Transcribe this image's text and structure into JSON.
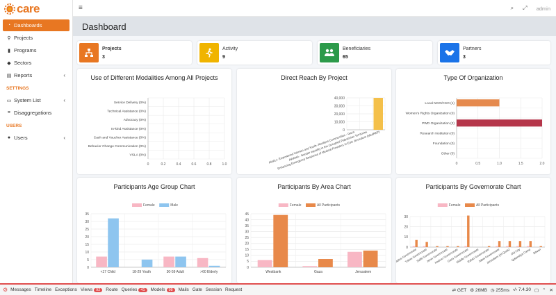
{
  "app": {
    "logo_text": "care"
  },
  "sidebar": {
    "items": [
      {
        "label": "Dashboards",
        "icon": "dashboard-icon",
        "active": true
      },
      {
        "label": "Projects",
        "icon": "sitemap-icon"
      },
      {
        "label": "Programs",
        "icon": "file-icon"
      },
      {
        "label": "Sectors",
        "icon": "sectors-icon"
      },
      {
        "label": "Reports",
        "icon": "chart-icon",
        "chevron": "‹"
      }
    ],
    "settings_header": "SETTINGS",
    "settings_items": [
      {
        "label": "System List",
        "chevron": "‹"
      },
      {
        "label": "Disaggregations"
      }
    ],
    "users_header": "USERS",
    "users_items": [
      {
        "label": "Users",
        "chevron": "‹"
      }
    ]
  },
  "topbar": {
    "hamburger": "≡",
    "search": "⌕",
    "fullscreen": "⤢",
    "user": "admin"
  },
  "page": {
    "title": "Dashboard"
  },
  "stats": [
    {
      "title": "Projects",
      "value": "3",
      "color": "#e87722",
      "icon": "sitemap-icon",
      "glyph": "⚙"
    },
    {
      "title": "Activity",
      "value": "9",
      "color": "#f0b400",
      "icon": "running-icon",
      "glyph": "🏃"
    },
    {
      "title": "Beneficiaries",
      "value": "65",
      "color": "#2c9a4a",
      "icon": "users-icon",
      "glyph": "👥"
    },
    {
      "title": "Partners",
      "value": "3",
      "color": "#1a73e8",
      "icon": "handshake-icon",
      "glyph": "🤝"
    }
  ],
  "chart_titles": {
    "modalities": "Use of Different Modalities Among All Projects",
    "direct_reach": "Direct Reach By Project",
    "org_type": "Type Of Organization",
    "age_group": "Participants Age Group Chart",
    "area": "Participants By Area Chart",
    "governorate": "Participants By Governorate Chart"
  },
  "chart_data": [
    {
      "id": "modalities",
      "type": "bar",
      "orientation": "horizontal",
      "categories": [
        "Service Delivery (0%)",
        "Technical Assistance (0%)",
        "Advocacy (0%)",
        "In-kind Assistance (0%)",
        "Cash and Voucher Assistance (0%)",
        "Behavior Change Communication (0%)",
        "VSLA (0%)"
      ],
      "values": [
        0,
        0,
        0,
        0,
        0,
        0,
        0
      ],
      "xlim": [
        0,
        1.0
      ],
      "xticks": [
        "0",
        "0.2",
        "0.4",
        "0.6",
        "0.8",
        "1.0"
      ],
      "grid": true
    },
    {
      "id": "direct_reach",
      "type": "bar",
      "categories": [
        "AMALI- Empowered Women and Youth- Resilient Communities - Gaza",
        "AWANA - Gender equality in the Occupied Palestinian Territories",
        "Enhancing Emergency Response of Medical Providers in East Jerusalem (MedREP)"
      ],
      "values": [
        0,
        0,
        40000
      ],
      "ylim": [
        0,
        40000
      ],
      "yticks": [
        "0",
        "10,000",
        "20,000",
        "30,000",
        "40,000"
      ],
      "color": "#f4c04a",
      "grid": true
    },
    {
      "id": "org_type",
      "type": "bar",
      "orientation": "horizontal",
      "categories": [
        "Local NGO/CSO (1)",
        "Women's Rights Organization (0)",
        "PWD Organization (2)",
        "Research Institution (0)",
        "Foundation (0)",
        "Other (0)"
      ],
      "values": [
        1,
        0,
        2,
        0,
        0,
        0
      ],
      "colors": [
        "#e58a4e",
        "#c0c0c0",
        "#b5364a",
        "#c0c0c0",
        "#c0c0c0",
        "#c0c0c0"
      ],
      "xlim": [
        0,
        2.0
      ],
      "xticks": [
        "0",
        "0.5",
        "1.0",
        "1.5",
        "2.0"
      ],
      "grid": true
    },
    {
      "id": "age_group",
      "type": "bar",
      "categories": [
        "<17 Child",
        "18-29 Youth",
        "30-59 Adult",
        ">60 Elderly"
      ],
      "series": [
        {
          "name": "Female",
          "values": [
            7,
            0,
            7,
            6
          ],
          "color": "#f8b7c4"
        },
        {
          "name": "Male",
          "values": [
            32,
            5,
            7,
            1
          ],
          "color": "#8ec5ef"
        }
      ],
      "ylim": [
        0,
        35
      ],
      "yticks": [
        "0",
        "5",
        "10",
        "15",
        "20",
        "25",
        "30",
        "35"
      ],
      "legend": "top",
      "grid": true
    },
    {
      "id": "area",
      "type": "bar",
      "categories": [
        "Westbank",
        "Gaza",
        "Jerusalem"
      ],
      "series": [
        {
          "name": "Female",
          "values": [
            6,
            1,
            13
          ],
          "color": "#f8b7c4"
        },
        {
          "name": "All Participants",
          "values": [
            44,
            7,
            14
          ],
          "color": "#e8894a"
        }
      ],
      "ylim": [
        0,
        45
      ],
      "yticks": [
        "0",
        "5",
        "10",
        "15",
        "20",
        "25",
        "30",
        "35",
        "40",
        "45"
      ],
      "legend": "top",
      "grid": true
    },
    {
      "id": "governorate",
      "type": "bar",
      "categories": [
        "Nablus Governorate",
        "Tubas Governorate",
        "Salfit Governorate",
        "Jenin Governorate",
        "Hebron Governorate",
        "Gaza Governorate",
        "Middle Governorate",
        "Rafah Governorate",
        "Jabel Governorate",
        "Jerusalem (Al-Quds)",
        "Old City",
        "Qalandiya Camp",
        "Silwan"
      ],
      "series": [
        {
          "name": "Female",
          "values": [
            1,
            1,
            0,
            0,
            0,
            1,
            0,
            0,
            1,
            1,
            1,
            1,
            0
          ],
          "color": "#f8b7c4"
        },
        {
          "name": "All Participants",
          "values": [
            7,
            5,
            1,
            1,
            1,
            31,
            0,
            1,
            6,
            6,
            6,
            6,
            1
          ],
          "color": "#e8894a"
        }
      ],
      "ylim": [
        0,
        30
      ],
      "yticks": [
        "0",
        "10",
        "20",
        "30"
      ],
      "legend": "top",
      "grid": true
    }
  ],
  "debugbar": {
    "items": [
      {
        "label": "Messages"
      },
      {
        "label": "Timeline"
      },
      {
        "label": "Exceptions"
      },
      {
        "label": "Views",
        "badge": "92"
      },
      {
        "label": "Route"
      },
      {
        "label": "Queries",
        "badge": "41"
      },
      {
        "label": "Models",
        "badge": "98"
      },
      {
        "label": "Mails"
      },
      {
        "label": "Gate"
      },
      {
        "label": "Session"
      },
      {
        "label": "Request"
      }
    ],
    "method": "GET",
    "memory": "26MB",
    "time": "255ms",
    "php": "7.4.30"
  }
}
